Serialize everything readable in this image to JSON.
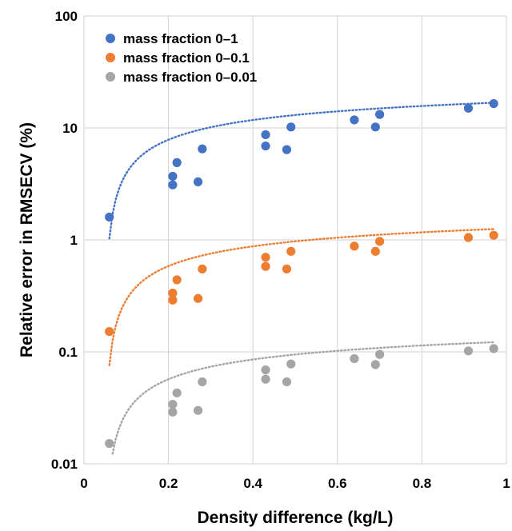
{
  "chart_data": {
    "type": "scatter",
    "xlabel": "Density difference (kg/L)",
    "ylabel": "Relative error in RMSECV (%)",
    "xlim": [
      0,
      1
    ],
    "ylim": [
      0.01,
      100
    ],
    "yscale": "log",
    "x_ticks": [
      "0",
      "0.2",
      "0.4",
      "0.6",
      "0.8",
      "1"
    ],
    "y_ticks": [
      "0.01",
      "0.1",
      "1",
      "10",
      "100"
    ],
    "grid": true,
    "legend_position": "top-left",
    "trendline_style": "dotted logarithmic fit",
    "series": [
      {
        "name": "mass fraction 0–1",
        "color": "#4472C4",
        "x": [
          0.06,
          0.21,
          0.21,
          0.22,
          0.27,
          0.28,
          0.43,
          0.43,
          0.48,
          0.49,
          0.64,
          0.69,
          0.7,
          0.91,
          0.97
        ],
        "y": [
          1.6,
          3.1,
          3.7,
          4.9,
          3.3,
          6.5,
          6.9,
          8.7,
          6.4,
          10.2,
          11.8,
          10.2,
          13.2,
          15.0,
          16.5
        ],
        "trend": {
          "x_start": 0.06,
          "x_end": 0.97,
          "y_start": 1.03,
          "y_end": 16.8
        }
      },
      {
        "name": "mass fraction 0–0.1",
        "color": "#ED7D31",
        "x": [
          0.06,
          0.21,
          0.21,
          0.22,
          0.27,
          0.28,
          0.43,
          0.43,
          0.48,
          0.49,
          0.64,
          0.69,
          0.7,
          0.91,
          0.97
        ],
        "y": [
          0.152,
          0.29,
          0.335,
          0.44,
          0.3,
          0.55,
          0.58,
          0.7,
          0.55,
          0.79,
          0.88,
          0.79,
          0.97,
          1.05,
          1.1
        ],
        "trend": {
          "x_start": 0.06,
          "x_end": 0.97,
          "y_start": 0.076,
          "y_end": 1.25
        }
      },
      {
        "name": "mass fraction 0–0.01",
        "color": "#A5A5A5",
        "x": [
          0.06,
          0.21,
          0.21,
          0.22,
          0.27,
          0.28,
          0.43,
          0.43,
          0.48,
          0.49,
          0.64,
          0.69,
          0.7,
          0.91,
          0.97
        ],
        "y": [
          0.0152,
          0.029,
          0.034,
          0.043,
          0.03,
          0.054,
          0.057,
          0.069,
          0.054,
          0.078,
          0.087,
          0.077,
          0.095,
          0.102,
          0.107
        ],
        "trend": {
          "x_start": 0.06,
          "x_end": 0.97,
          "y_start": 0.0074,
          "y_end": 0.122
        }
      }
    ]
  }
}
